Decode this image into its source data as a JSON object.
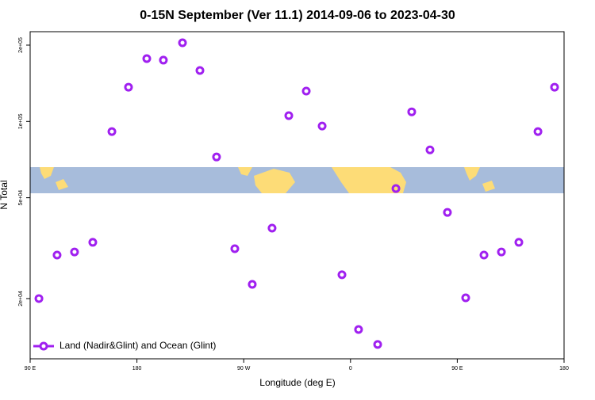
{
  "chart_data": {
    "type": "scatter",
    "title": "0-15N September (Ver 11.1)   2014-09-06 to 2023-04-30",
    "xlabel": "Longitude (deg E)",
    "ylabel": "N Total",
    "log_y": true,
    "legend": "bottom-left",
    "xlim": [
      90,
      540
    ],
    "ylim": [
      11570,
      226000
    ],
    "xticks": [
      {
        "value": 90,
        "label": "90 E"
      },
      180,
      {
        "value": 270,
        "label": "90 W"
      },
      {
        "value": 360,
        "label": "0"
      },
      {
        "value": 450,
        "label": "90 E"
      },
      {
        "value": 540,
        "label": "180"
      }
    ],
    "yticks": [
      {
        "value": 20000,
        "label": "2e+04"
      },
      {
        "value": 50000,
        "label": "5e+04"
      },
      {
        "value": 100000,
        "label": "1e+05"
      },
      {
        "value": 200000,
        "label": "2e+05"
      }
    ],
    "series": [
      {
        "name": "Land (Nadir&Glint) and Ocean (Glint)",
        "color": "#a020f0",
        "x": [
          97.4,
          112.7,
          127.4,
          142.8,
          158.9,
          172.9,
          188.3,
          202.3,
          218.4,
          233.1,
          247.1,
          262.5,
          277.2,
          293.9,
          308.0,
          322.7,
          336.1,
          352.8,
          366.8,
          382.9,
          398.3,
          411.6,
          427.0,
          441.7,
          457.1,
          472.5,
          487.2,
          501.9,
          518.0,
          532.0
        ],
        "values": [
          20000,
          29700,
          30550,
          33340,
          91200,
          136500,
          176900,
          174500,
          204300,
          158800,
          72400,
          31470,
          22750,
          37930,
          105400,
          131700,
          95900,
          24830,
          15100,
          13180,
          54340,
          109100,
          77200,
          43750,
          20140,
          29700,
          30550,
          33340,
          91200,
          136500
        ]
      }
    ]
  }
}
